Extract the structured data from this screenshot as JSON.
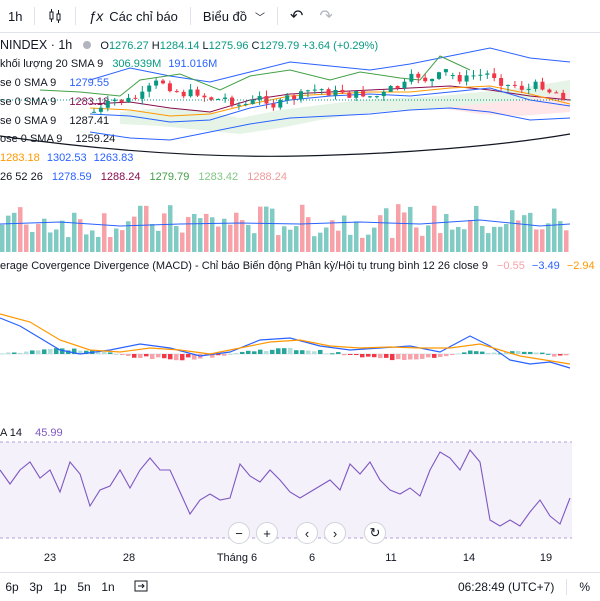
{
  "toolbar": {
    "interval": "1h",
    "indicators_label": "Các chỉ báo",
    "chart_type_label": "Biểu đồ",
    "fx_icon": "fx-icon",
    "candle_icon": "candlestick-icon"
  },
  "symbol": {
    "name": "NINDEX · 1h",
    "o_label": "O",
    "o": "1276.27",
    "h_label": "H",
    "h": "1284.14",
    "l_label": "L",
    "l": "1275.96",
    "c_label": "C",
    "c": "1279.79",
    "change": "+3.64 (+0.29%)"
  },
  "legends": {
    "volume": {
      "label": "khối lượng 20 SMA 9",
      "v1": "306.939M",
      "v2": "191.016M"
    },
    "sma1": {
      "label": "se 0 SMA 9",
      "value": "1279.55"
    },
    "sma2": {
      "label": "se 0 SMA 9",
      "value": "1283.18"
    },
    "sma3": {
      "label": "se 0 SMA 9",
      "value": "1287.41"
    },
    "sma4": {
      "label": "ose 0 SMA 9",
      "value": "1259.24"
    },
    "bb": {
      "v1": "1283.18",
      "v2": "1302.53",
      "v3": "1263.83"
    },
    "ichimoku": {
      "label": "26 52 26",
      "v1": "1278.59",
      "v2": "1288.24",
      "v3": "1279.79",
      "v4": "1283.42",
      "v5": "1288.24"
    },
    "macd": {
      "label": "erage Covergence Divergence (MACD) - Chỉ báo Biến động Phân kỳ/Hội tụ trung bình 12 26 close 9",
      "v1": "−0.55",
      "v2": "−3.49",
      "v3": "−2.94"
    },
    "rsi": {
      "label": "A 14",
      "value": "45.99"
    }
  },
  "xaxis": {
    "ticks": [
      "23",
      "28",
      "Tháng 6",
      "6",
      "11",
      "14",
      "19"
    ]
  },
  "bottom": {
    "ranges": [
      "6p",
      "3p",
      "1p",
      "5n",
      "1n"
    ],
    "time": "06:28:49 (UTC+7)",
    "percent": "%"
  },
  "colors": {
    "up": "#089981",
    "down": "#f23645",
    "macd": "#2962ff",
    "signal": "#ff9800",
    "rsi": "#7e57c2"
  }
}
